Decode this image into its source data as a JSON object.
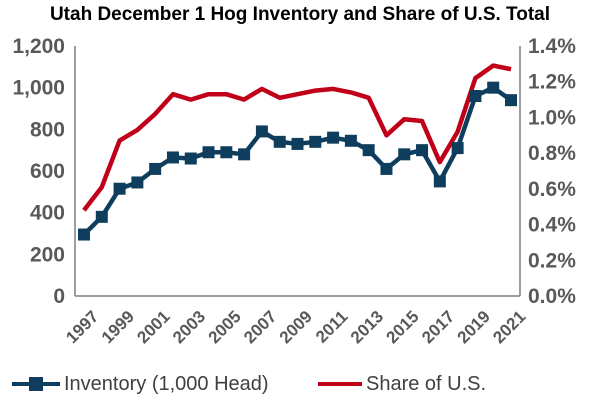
{
  "chart_data": {
    "type": "line",
    "title": "Utah December 1 Hog Inventory and Share of U.S. Total",
    "x": [
      1997,
      1998,
      1999,
      2000,
      2001,
      2002,
      2003,
      2004,
      2005,
      2006,
      2007,
      2008,
      2009,
      2010,
      2011,
      2012,
      2013,
      2014,
      2015,
      2016,
      2017,
      2018,
      2019,
      2020,
      2021
    ],
    "x_tick_labels": [
      "1997",
      "1999",
      "2001",
      "2003",
      "2005",
      "2007",
      "2009",
      "2011",
      "2013",
      "2015",
      "2017",
      "2019",
      "2021"
    ],
    "y_left": {
      "ylim": [
        0,
        1200
      ],
      "ticks": [
        "0",
        "200",
        "400",
        "600",
        "800",
        "1,000",
        "1,200"
      ]
    },
    "y_right": {
      "ylim": [
        0,
        0.014
      ],
      "ticks": [
        "0.0%",
        "0.2%",
        "0.4%",
        "0.6%",
        "0.8%",
        "1.0%",
        "1.2%",
        "1.4%"
      ]
    },
    "series": [
      {
        "name": "Inventory (1,000 Head)",
        "axis": "left",
        "color": "#0F3D5E",
        "marker": "square",
        "values": [
          295,
          380,
          515,
          545,
          610,
          665,
          660,
          690,
          690,
          680,
          790,
          740,
          730,
          740,
          760,
          745,
          700,
          610,
          680,
          700,
          550,
          710,
          960,
          1000,
          940
        ]
      },
      {
        "name": "Share of U.S.",
        "axis": "right",
        "color": "#C00018",
        "marker": "none",
        "values": [
          0.0048,
          0.0061,
          0.0087,
          0.0093,
          0.0102,
          0.0113,
          0.011,
          0.0113,
          0.0113,
          0.011,
          0.0116,
          0.0111,
          0.0113,
          0.0115,
          0.0116,
          0.0114,
          0.0111,
          0.009,
          0.0099,
          0.0098,
          0.0075,
          0.0092,
          0.0122,
          0.0129,
          0.0127
        ]
      }
    ],
    "grid": false,
    "legend_position": "bottom"
  }
}
